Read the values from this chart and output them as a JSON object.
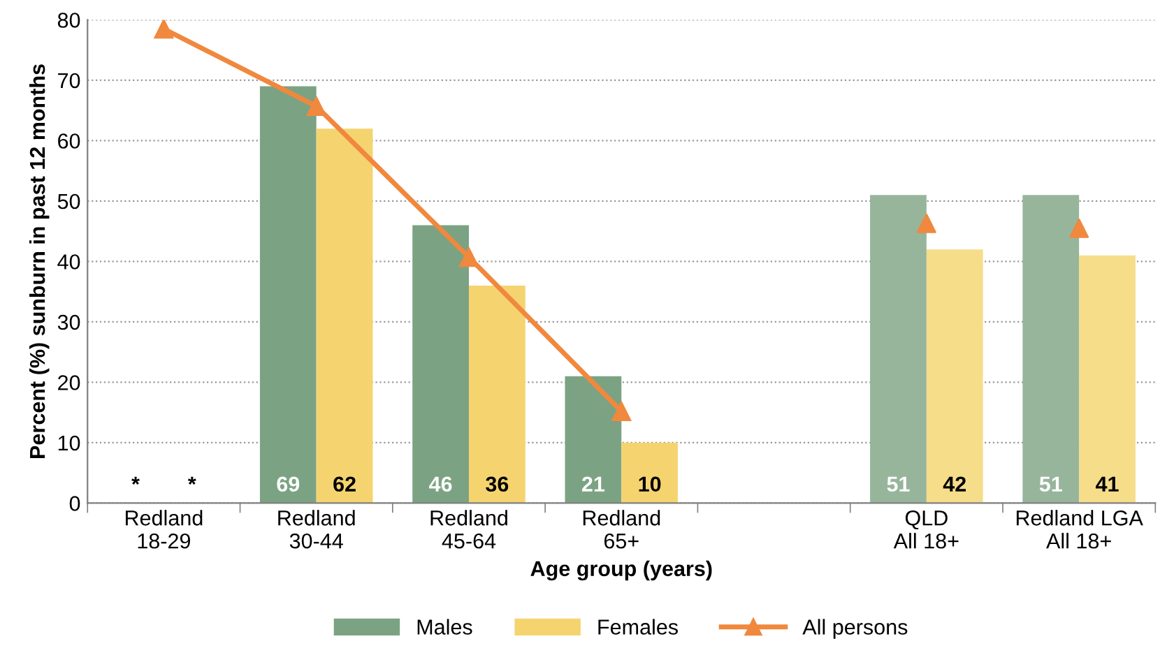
{
  "chart_data": {
    "type": "bar",
    "xlabel": "Age group (years)",
    "ylabel": "Percent (%) sunburn in past 12 months",
    "categories": [
      "Redland\n18-29",
      "Redland\n30-44",
      "Redland\n45-64",
      "Redland\n65+",
      null,
      "QLD\nAll 18+",
      "Redland LGA\nAll 18+"
    ],
    "series": [
      {
        "name": "Males",
        "color": "#7ba383",
        "colors": [
          "#7ba383",
          "#7ba383",
          "#7ba383",
          "#7ba383",
          "#7ba383",
          "#97b59b",
          "#97b59b"
        ],
        "values": [
          null,
          69,
          46,
          21,
          null,
          51,
          51
        ],
        "value_labels": [
          "*",
          "69",
          "46",
          "21",
          null,
          "51",
          "51"
        ]
      },
      {
        "name": "Females",
        "color": "#f5d470",
        "colors": [
          "#f5d470",
          "#f5d470",
          "#f5d470",
          "#f5d470",
          "#f5d470",
          "#f5dd8a",
          "#f5dd8a"
        ],
        "values": [
          null,
          62,
          36,
          10,
          null,
          42,
          41
        ],
        "value_labels": [
          "*",
          "62",
          "36",
          "10",
          null,
          "42",
          "41"
        ]
      },
      {
        "name": "All persons",
        "type": "line",
        "color": "#f0883e",
        "marker": "triangle",
        "values": [
          78.5,
          65.7,
          40.7,
          15.2,
          null,
          null,
          null
        ]
      },
      {
        "type": "scatter",
        "color": "#f0883e",
        "marker": "triangle",
        "values": [
          null,
          null,
          null,
          null,
          null,
          46.3,
          45.5
        ]
      }
    ],
    "ylim": [
      0,
      80
    ],
    "yticks": [
      0,
      10,
      20,
      30,
      40,
      50,
      60,
      70,
      80
    ],
    "grid": "y",
    "legend": "bottom"
  }
}
